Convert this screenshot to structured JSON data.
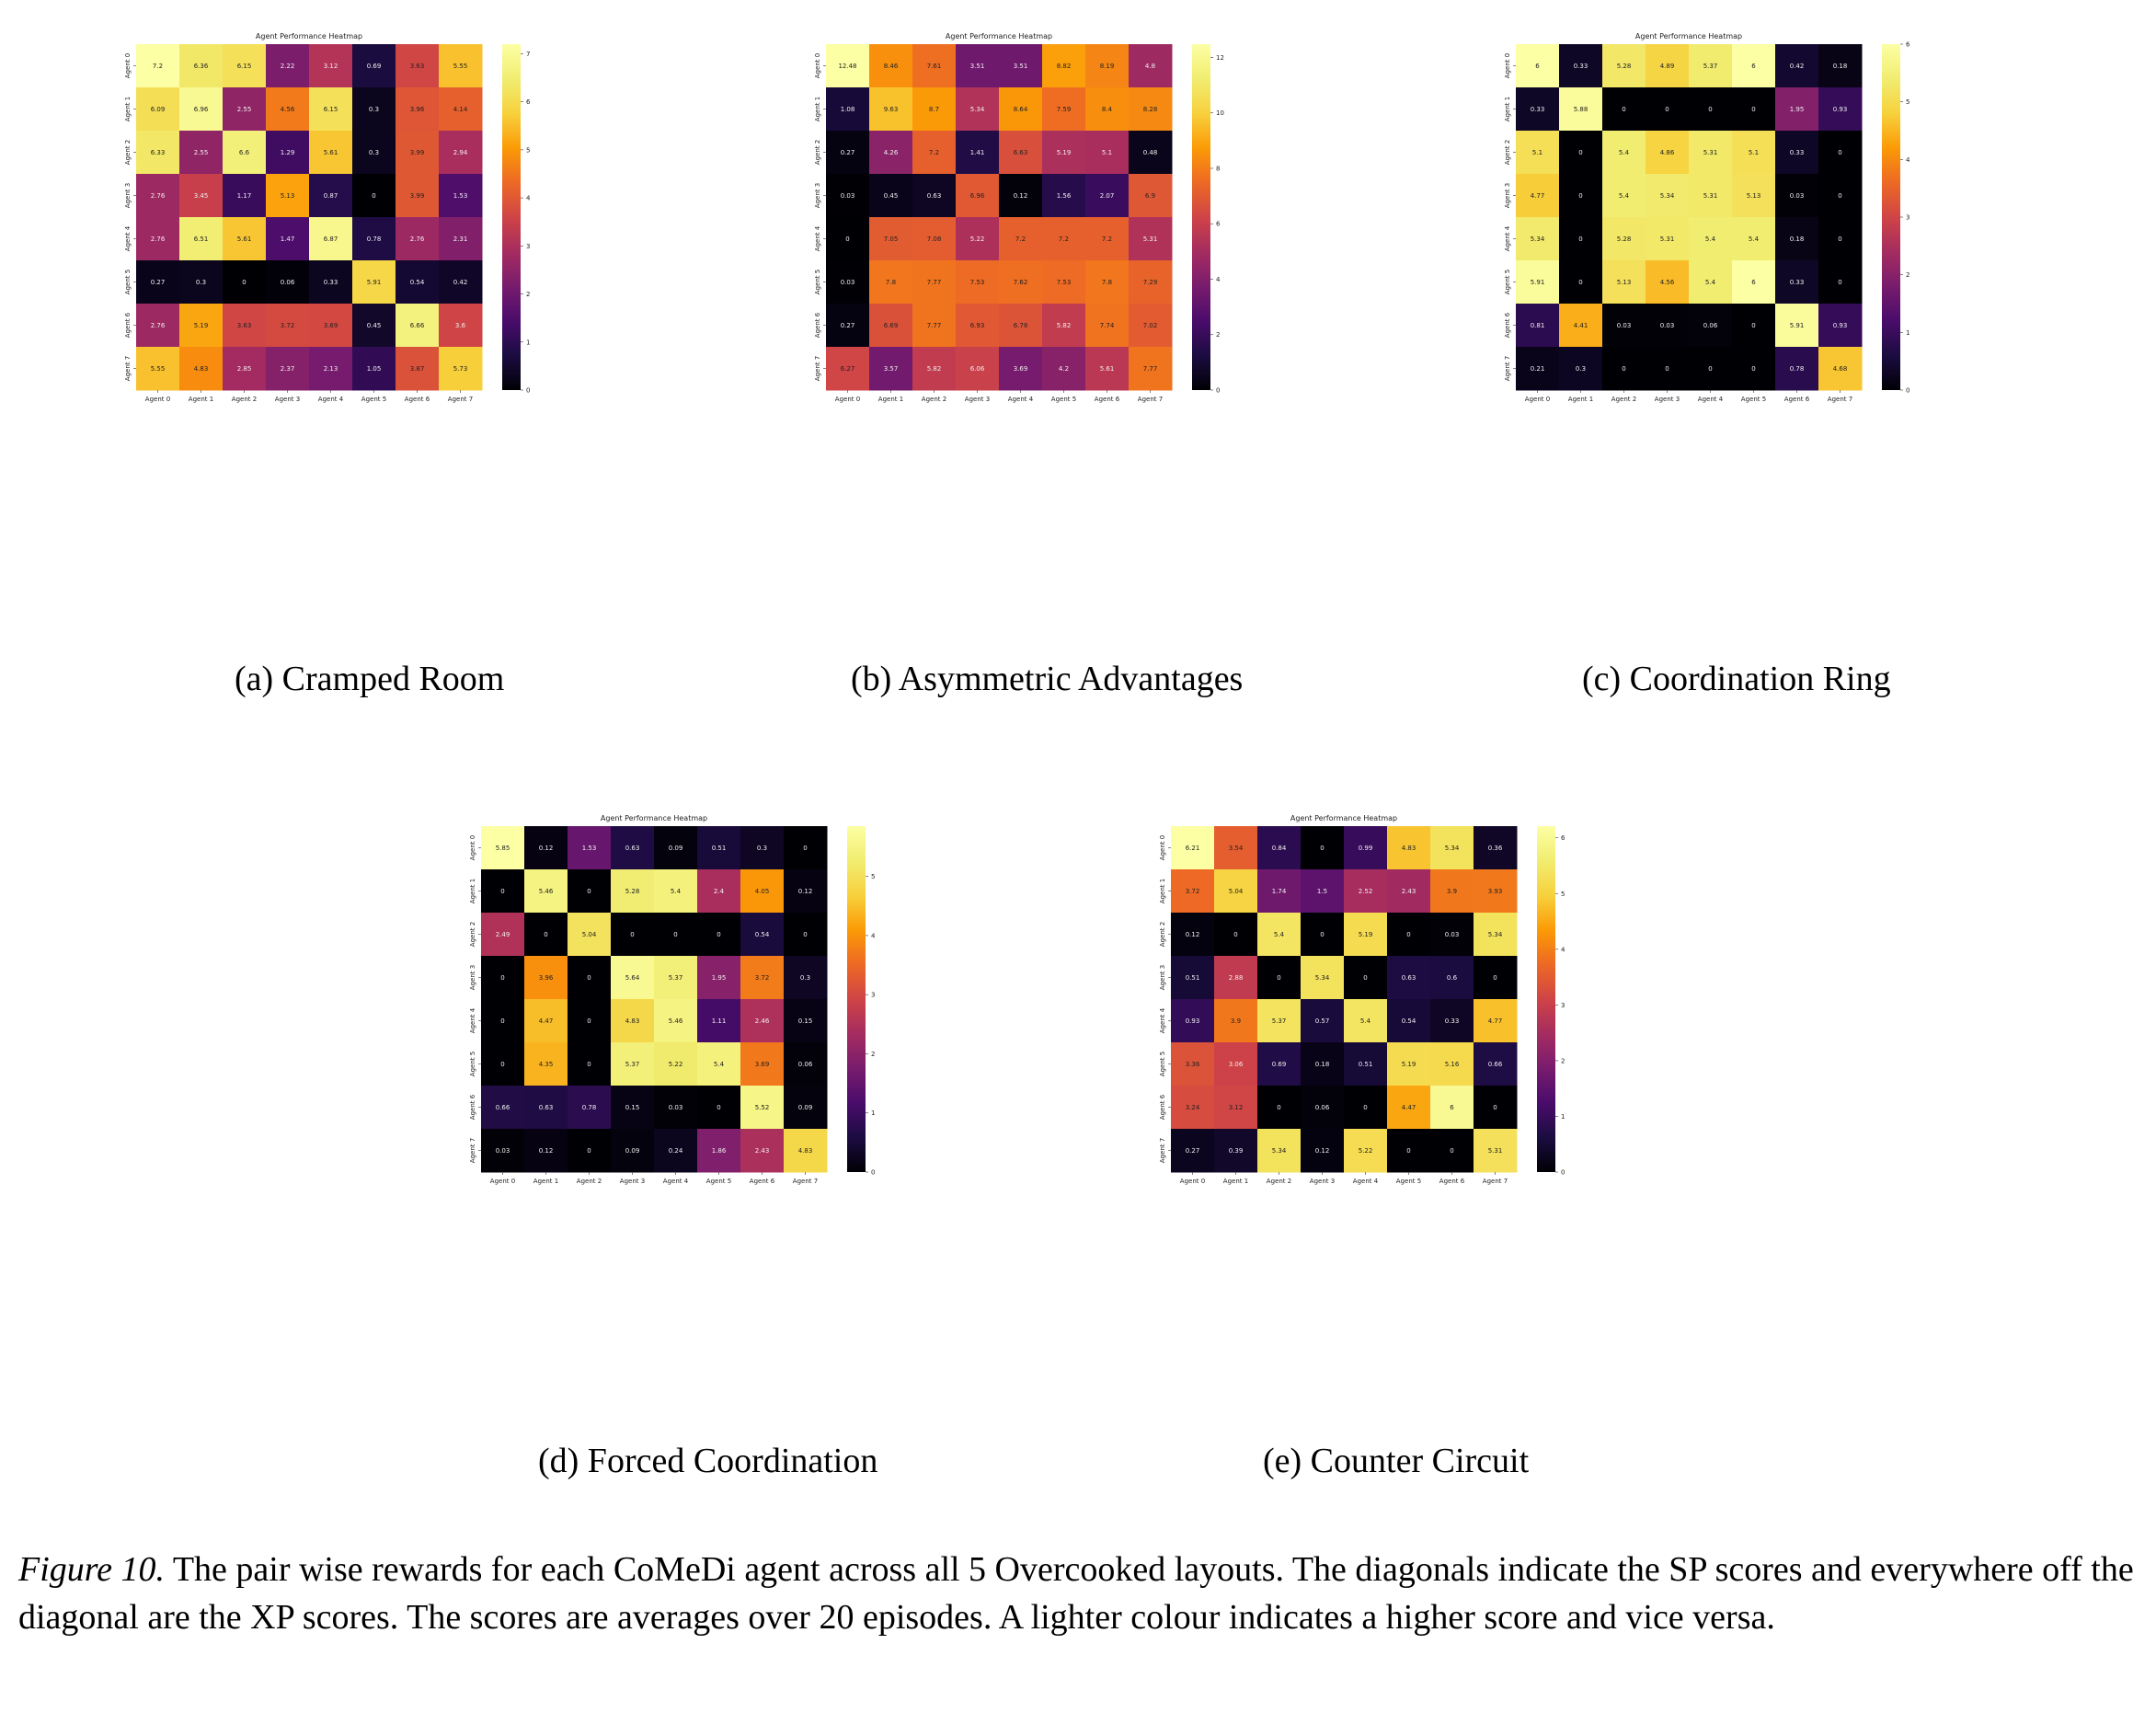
{
  "agents": [
    "Agent 0",
    "Agent 1",
    "Agent 2",
    "Agent 3",
    "Agent 4",
    "Agent 5",
    "Agent 6",
    "Agent 7"
  ],
  "chart_data": [
    {
      "type": "heatmap",
      "title": "Agent Performance Heatmap",
      "caption": "(a) Cramped Room",
      "colormap": "inferno",
      "vmin": 0,
      "vmax": 7.2,
      "colorbar_ticks": [
        0,
        1,
        2,
        3,
        4,
        5,
        6,
        7
      ],
      "values": [
        [
          7.2,
          6.36,
          6.15,
          2.22,
          3.12,
          0.69,
          3.63,
          5.55
        ],
        [
          6.09,
          6.96,
          2.55,
          4.56,
          6.15,
          0.3,
          3.96,
          4.14
        ],
        [
          6.33,
          2.55,
          6.6,
          1.29,
          5.61,
          0.3,
          3.99,
          2.94
        ],
        [
          2.76,
          3.45,
          1.17,
          5.13,
          0.87,
          0,
          3.99,
          1.53
        ],
        [
          2.76,
          6.51,
          5.61,
          1.47,
          6.87,
          0.78,
          2.76,
          2.31
        ],
        [
          0.27,
          0.3,
          0,
          0.06,
          0.33,
          5.91,
          0.54,
          0.42
        ],
        [
          2.76,
          5.19,
          3.63,
          3.72,
          3.69,
          0.45,
          6.66,
          3.6
        ],
        [
          5.55,
          4.83,
          2.85,
          2.37,
          2.13,
          1.05,
          3.87,
          5.73
        ]
      ]
    },
    {
      "type": "heatmap",
      "title": "Agent Performance Heatmap",
      "caption": "(b) Asymmetric Advantages",
      "colormap": "inferno",
      "vmin": 0,
      "vmax": 12.48,
      "colorbar_ticks": [
        0,
        2,
        4,
        6,
        8,
        10,
        12
      ],
      "values": [
        [
          12.48,
          8.46,
          7.61,
          3.51,
          3.51,
          8.82,
          8.19,
          4.8
        ],
        [
          1.08,
          9.63,
          8.7,
          5.34,
          8.64,
          7.59,
          8.4,
          8.28
        ],
        [
          0.27,
          4.26,
          7.2,
          1.41,
          6.63,
          5.19,
          5.1,
          0.48
        ],
        [
          0.03,
          0.45,
          0.63,
          6.96,
          0.12,
          1.56,
          2.07,
          6.9
        ],
        [
          0,
          7.05,
          7.08,
          5.22,
          7.2,
          7.2,
          7.2,
          5.31
        ],
        [
          0.03,
          7.8,
          7.77,
          7.53,
          7.62,
          7.53,
          7.8,
          7.29
        ],
        [
          0.27,
          6.69,
          7.77,
          6.93,
          6.78,
          5.82,
          7.74,
          7.02
        ],
        [
          6.27,
          3.57,
          5.82,
          6.06,
          3.69,
          4.2,
          5.61,
          7.77
        ]
      ]
    },
    {
      "type": "heatmap",
      "title": "Agent Performance Heatmap",
      "caption": "(c) Coordination Ring",
      "colormap": "inferno",
      "vmin": 0,
      "vmax": 6,
      "colorbar_ticks": [
        0,
        1,
        2,
        3,
        4,
        5,
        6
      ],
      "values": [
        [
          6,
          0.33,
          5.28,
          4.89,
          5.37,
          6,
          0.42,
          0.18
        ],
        [
          0.33,
          5.88,
          0,
          0,
          0,
          0,
          1.95,
          0.93
        ],
        [
          5.1,
          0,
          5.4,
          4.86,
          5.31,
          5.1,
          0.33,
          0
        ],
        [
          4.77,
          0,
          5.4,
          5.34,
          5.31,
          5.13,
          0.03,
          0
        ],
        [
          5.34,
          0,
          5.28,
          5.31,
          5.4,
          5.4,
          0.18,
          0
        ],
        [
          5.91,
          0,
          5.13,
          4.56,
          5.4,
          6,
          0.33,
          0
        ],
        [
          0.81,
          4.41,
          0.03,
          0.03,
          0.06,
          0,
          5.91,
          0.93
        ],
        [
          0.21,
          0.3,
          0,
          0,
          0,
          0,
          0.78,
          4.68
        ]
      ]
    },
    {
      "type": "heatmap",
      "title": "Agent Performance Heatmap",
      "caption": "(d) Forced Coordination",
      "colormap": "inferno",
      "vmin": 0,
      "vmax": 5.85,
      "colorbar_ticks": [
        0,
        1,
        2,
        3,
        4,
        5
      ],
      "values": [
        [
          5.85,
          0.12,
          1.53,
          0.63,
          0.09,
          0.51,
          0.3,
          0
        ],
        [
          0,
          5.46,
          0,
          5.28,
          5.4,
          2.4,
          4.05,
          0.12
        ],
        [
          2.49,
          0,
          5.04,
          0,
          0,
          0,
          0.54,
          0
        ],
        [
          0,
          3.96,
          0,
          5.64,
          5.37,
          1.95,
          3.72,
          0.3
        ],
        [
          0,
          4.47,
          0,
          4.83,
          5.46,
          1.11,
          2.46,
          0.15
        ],
        [
          0,
          4.35,
          0,
          5.37,
          5.22,
          5.4,
          3.69,
          0.06
        ],
        [
          0.66,
          0.63,
          0.78,
          0.15,
          0.03,
          0,
          5.52,
          0.09
        ],
        [
          0.03,
          0.12,
          0,
          0.09,
          0.24,
          1.86,
          2.43,
          4.83
        ]
      ]
    },
    {
      "type": "heatmap",
      "title": "Agent Performance Heatmap",
      "caption": "(e) Counter Circuit",
      "colormap": "inferno",
      "vmin": 0,
      "vmax": 6.21,
      "colorbar_ticks": [
        0,
        1,
        2,
        3,
        4,
        5,
        6
      ],
      "values": [
        [
          6.21,
          3.54,
          0.84,
          0,
          0.99,
          4.83,
          5.34,
          0.36
        ],
        [
          3.72,
          5.04,
          1.74,
          1.5,
          2.52,
          2.43,
          3.9,
          3.93
        ],
        [
          0.12,
          0,
          5.4,
          0,
          5.19,
          0,
          0.03,
          5.34
        ],
        [
          0.51,
          2.88,
          0,
          5.34,
          0,
          0.63,
          0.6,
          0
        ],
        [
          0.93,
          3.9,
          5.37,
          0.57,
          5.4,
          0.54,
          0.33,
          4.77
        ],
        [
          3.36,
          3.06,
          0.69,
          0.18,
          0.51,
          5.19,
          5.16,
          0.66
        ],
        [
          3.24,
          3.12,
          0,
          0.06,
          0,
          4.47,
          6,
          0
        ],
        [
          0.27,
          0.39,
          5.34,
          0.12,
          5.22,
          0,
          0,
          5.31
        ]
      ]
    }
  ],
  "figure_caption": {
    "label": "Figure 10.",
    "text": " The pair wise rewards for each CoMeDi agent across all 5 Overcooked layouts. The diagonals indicate the SP scores and everywhere off the diagonal are the XP scores. The scores are averages over 20 episodes. A lighter colour indicates a higher score and vice versa."
  }
}
